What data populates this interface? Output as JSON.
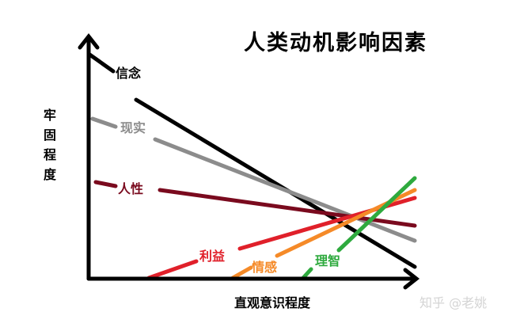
{
  "title": "人类动机影响因素",
  "y_axis_label": [
    "牢",
    "固",
    "程",
    "度"
  ],
  "x_axis_label": "直观意识程度",
  "watermark": "知乎 @老姚",
  "lines": [
    {
      "label": "信念",
      "color": "#000000",
      "trend": "decreasing"
    },
    {
      "label": "现实",
      "color": "#8c8c8c",
      "trend": "decreasing"
    },
    {
      "label": "人性",
      "color": "#7a0a1e",
      "trend": "decreasing"
    },
    {
      "label": "利益",
      "color": "#e0202a",
      "trend": "increasing"
    },
    {
      "label": "情感",
      "color": "#f58a28",
      "trend": "increasing"
    },
    {
      "label": "理智",
      "color": "#2eaa3e",
      "trend": "increasing"
    }
  ]
}
